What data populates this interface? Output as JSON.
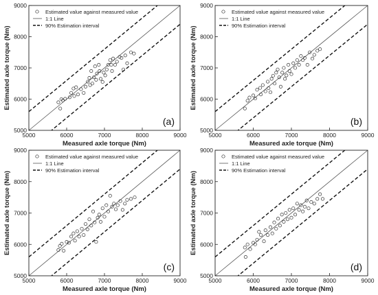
{
  "chart_data": [
    {
      "type": "scatter",
      "panel_label": "(a)",
      "xlabel": "Measured axle torque (Nm)",
      "ylabel": "Estimated axle torque (Nm)",
      "xlim": [
        5000,
        9000
      ],
      "ylim": [
        5000,
        9000
      ],
      "xticks": [
        "5000",
        "6000",
        "7000",
        "8000",
        "9000"
      ],
      "yticks": [
        "5000",
        "6000",
        "7000",
        "8000",
        "9000"
      ],
      "legend": [
        "Estimated value against measured value",
        "1:1 Line",
        "90% Estimation interval"
      ],
      "legend_position": "top-left",
      "grid": false,
      "interval_offset": 600,
      "points": [
        [
          5780,
          5900
        ],
        [
          5830,
          5700
        ],
        [
          5860,
          6000
        ],
        [
          5900,
          5960
        ],
        [
          5960,
          6010
        ],
        [
          6080,
          6060
        ],
        [
          6120,
          6200
        ],
        [
          6180,
          6340
        ],
        [
          6200,
          6100
        ],
        [
          6250,
          6380
        ],
        [
          6300,
          6150
        ],
        [
          6380,
          6320
        ],
        [
          6450,
          6200
        ],
        [
          6500,
          6400
        ],
        [
          6560,
          6560
        ],
        [
          6600,
          6680
        ],
        [
          6620,
          6450
        ],
        [
          6650,
          6900
        ],
        [
          6680,
          6500
        ],
        [
          6720,
          6700
        ],
        [
          6750,
          7050
        ],
        [
          6780,
          6620
        ],
        [
          6800,
          6820
        ],
        [
          6850,
          7100
        ],
        [
          6870,
          6900
        ],
        [
          6900,
          6650
        ],
        [
          6950,
          6550
        ],
        [
          6980,
          6850
        ],
        [
          7020,
          6760
        ],
        [
          7060,
          6950
        ],
        [
          7100,
          7100
        ],
        [
          7150,
          7250
        ],
        [
          7180,
          7100
        ],
        [
          7200,
          6900
        ],
        [
          7230,
          7300
        ],
        [
          7280,
          7100
        ],
        [
          7330,
          7200
        ],
        [
          7400,
          7350
        ],
        [
          7450,
          7320
        ],
        [
          7500,
          6950
        ],
        [
          7550,
          7400
        ],
        [
          7600,
          7150
        ],
        [
          7700,
          7500
        ],
        [
          7780,
          7460
        ]
      ]
    },
    {
      "type": "scatter",
      "panel_label": "(b)",
      "xlabel": "Measured axle torque (Nm)",
      "ylabel": "Estimated axle torque (Nm)",
      "xlim": [
        5000,
        9000
      ],
      "ylim": [
        5000,
        9000
      ],
      "xticks": [
        "5000",
        "6000",
        "7000",
        "8000",
        "9000"
      ],
      "yticks": [
        "5000",
        "6000",
        "7000",
        "8000",
        "9000"
      ],
      "legend": [
        "Estimated value against measured value",
        "1:1 Line",
        "90% Estimation interval"
      ],
      "legend_position": "top-left",
      "grid": false,
      "interval_offset": 600,
      "points": [
        [
          5780,
          5700
        ],
        [
          5850,
          5950
        ],
        [
          5900,
          6050
        ],
        [
          6000,
          6120
        ],
        [
          6050,
          6020
        ],
        [
          6100,
          6300
        ],
        [
          6180,
          6360
        ],
        [
          6200,
          6150
        ],
        [
          6250,
          6450
        ],
        [
          6320,
          6250
        ],
        [
          6380,
          6560
        ],
        [
          6400,
          6350
        ],
        [
          6450,
          6220
        ],
        [
          6480,
          6650
        ],
        [
          6520,
          6750
        ],
        [
          6560,
          6500
        ],
        [
          6600,
          6850
        ],
        [
          6640,
          6950
        ],
        [
          6680,
          6700
        ],
        [
          6720,
          6400
        ],
        [
          6760,
          6850
        ],
        [
          6800,
          7000
        ],
        [
          6830,
          6650
        ],
        [
          6870,
          6760
        ],
        [
          6920,
          7100
        ],
        [
          6950,
          6900
        ],
        [
          7000,
          6800
        ],
        [
          7050,
          7150
        ],
        [
          7100,
          7000
        ],
        [
          7150,
          7250
        ],
        [
          7200,
          7100
        ],
        [
          7250,
          7380
        ],
        [
          7300,
          7250
        ],
        [
          7350,
          7320
        ],
        [
          7420,
          7100
        ],
        [
          7480,
          7500
        ],
        [
          7550,
          7300
        ],
        [
          7600,
          7420
        ],
        [
          7680,
          7550
        ],
        [
          7750,
          7600
        ]
      ]
    },
    {
      "type": "scatter",
      "panel_label": "(c)",
      "xlabel": "Measured axle torque (Nm)",
      "ylabel": "Estimated axle torque (Nm)",
      "xlim": [
        5000,
        9000
      ],
      "ylim": [
        5000,
        9000
      ],
      "xticks": [
        "5000",
        "6000",
        "7000",
        "8000",
        "9000"
      ],
      "yticks": [
        "5000",
        "6000",
        "7000",
        "8000",
        "9000"
      ],
      "legend": [
        "Estimated value against measured value",
        "1:1 Line",
        "90% Estimation interval"
      ],
      "legend_position": "top-left",
      "grid": false,
      "interval_offset": 600,
      "points": [
        [
          5780,
          5820
        ],
        [
          5820,
          5950
        ],
        [
          5870,
          6020
        ],
        [
          5920,
          5800
        ],
        [
          6000,
          6080
        ],
        [
          6060,
          6050
        ],
        [
          6120,
          6250
        ],
        [
          6180,
          6350
        ],
        [
          6220,
          6120
        ],
        [
          6280,
          6420
        ],
        [
          6330,
          6250
        ],
        [
          6400,
          6500
        ],
        [
          6450,
          6300
        ],
        [
          6500,
          6650
        ],
        [
          6550,
          6480
        ],
        [
          6600,
          6800
        ],
        [
          6650,
          6600
        ],
        [
          6700,
          7050
        ],
        [
          6740,
          6700
        ],
        [
          6780,
          6080
        ],
        [
          6820,
          6850
        ],
        [
          6860,
          6950
        ],
        [
          6900,
          6720
        ],
        [
          6950,
          7150
        ],
        [
          7000,
          6880
        ],
        [
          7050,
          7250
        ],
        [
          7100,
          7050
        ],
        [
          7150,
          7550
        ],
        [
          7200,
          7200
        ],
        [
          7250,
          7300
        ],
        [
          7300,
          7120
        ],
        [
          7350,
          7250
        ],
        [
          7420,
          7380
        ],
        [
          7480,
          7100
        ],
        [
          7540,
          7300
        ],
        [
          7600,
          7420
        ],
        [
          7700,
          7450
        ],
        [
          7800,
          7500
        ]
      ]
    },
    {
      "type": "scatter",
      "panel_label": "(d)",
      "xlabel": "Measured axle torque (Nm)",
      "ylabel": "Estimated axle torque (Nm)",
      "xlim": [
        5000,
        9000
      ],
      "ylim": [
        5000,
        9000
      ],
      "xticks": [
        "5000",
        "6000",
        "7000",
        "8000",
        "9000"
      ],
      "yticks": [
        "5000",
        "6000",
        "7000",
        "8000",
        "9000"
      ],
      "legend": [
        "Estimated value against measured value",
        "1:1 Line",
        "90% Estimation interval"
      ],
      "legend_position": "top-left",
      "grid": false,
      "interval_offset": 600,
      "points": [
        [
          5780,
          5900
        ],
        [
          5800,
          5600
        ],
        [
          5850,
          6000
        ],
        [
          5920,
          5850
        ],
        [
          6000,
          6050
        ],
        [
          6050,
          6000
        ],
        [
          6100,
          6150
        ],
        [
          6150,
          6400
        ],
        [
          6200,
          6300
        ],
        [
          6280,
          6100
        ],
        [
          6320,
          6450
        ],
        [
          6380,
          6300
        ],
        [
          6450,
          6550
        ],
        [
          6500,
          6350
        ],
        [
          6550,
          6700
        ],
        [
          6600,
          6500
        ],
        [
          6650,
          6820
        ],
        [
          6700,
          6600
        ],
        [
          6750,
          6950
        ],
        [
          6800,
          6720
        ],
        [
          6850,
          7000
        ],
        [
          6900,
          6800
        ],
        [
          6950,
          7100
        ],
        [
          7000,
          6850
        ],
        [
          7050,
          7150
        ],
        [
          7100,
          6950
        ],
        [
          7150,
          7300
        ],
        [
          7200,
          7100
        ],
        [
          7250,
          7250
        ],
        [
          7300,
          7050
        ],
        [
          7350,
          7200
        ],
        [
          7400,
          7400
        ],
        [
          7450,
          7150
        ],
        [
          7520,
          7350
        ],
        [
          7600,
          7300
        ],
        [
          7680,
          7450
        ],
        [
          7750,
          7600
        ],
        [
          7820,
          7450
        ]
      ]
    }
  ]
}
